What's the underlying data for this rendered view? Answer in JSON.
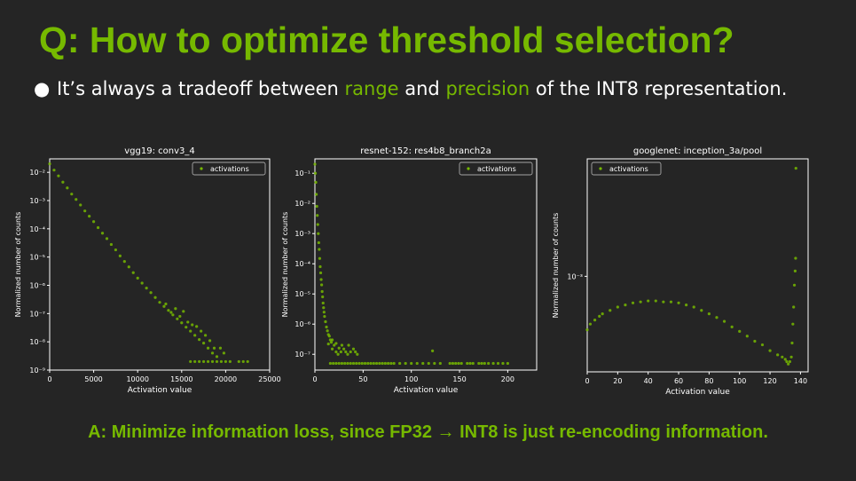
{
  "slide": {
    "title": "Q: How to optimize threshold selection?",
    "bullet": {
      "symbol": "●",
      "pre": "It’s always a tradeoff between ",
      "hl1": "range",
      "mid": " and ",
      "hl2": "precision",
      "post": " of the INT8 representation."
    },
    "answer": "A: Minimize information loss, since FP32 → INT8 is just re-encoding information.",
    "accent_color": "#76b900",
    "background_color": "#252525"
  },
  "chart_data": [
    {
      "type": "scatter",
      "title": "vgg19: conv3_4",
      "xlabel": "Activation value",
      "ylabel": "Normalized number of counts",
      "xlim": [
        0,
        25000
      ],
      "ylim": [
        1e-09,
        0.03
      ],
      "yscale": "log",
      "xticks": [
        0,
        5000,
        10000,
        15000,
        20000,
        25000
      ],
      "yticks": [
        1e-09,
        1e-08,
        1e-07,
        1e-06,
        1e-05,
        0.0001,
        0.001,
        0.01
      ],
      "ytick_labels": [
        "10⁻⁹",
        "10⁻⁸",
        "10⁻⁷",
        "10⁻⁶",
        "10⁻⁵",
        "10⁻⁴",
        "10⁻³",
        "10⁻²"
      ],
      "legend": "top-right",
      "grid": false,
      "series": [
        {
          "name": "activations",
          "color": "#76b900",
          "points": [
            [
              0,
              0.02
            ],
            [
              500,
              0.012
            ],
            [
              1000,
              0.0075
            ],
            [
              1500,
              0.0045
            ],
            [
              2000,
              0.0028
            ],
            [
              2500,
              0.0017
            ],
            [
              3000,
              0.0011
            ],
            [
              3500,
              0.0007
            ],
            [
              4000,
              0.00043
            ],
            [
              4500,
              0.00028
            ],
            [
              5000,
              0.00018
            ],
            [
              5500,
              0.00011
            ],
            [
              6000,
              7e-05
            ],
            [
              6500,
              4.5e-05
            ],
            [
              7000,
              2.8e-05
            ],
            [
              7500,
              1.8e-05
            ],
            [
              8000,
              1.1e-05
            ],
            [
              8500,
              7e-06
            ],
            [
              9000,
              4.5e-06
            ],
            [
              9500,
              2.8e-06
            ],
            [
              10000,
              1.8e-06
            ],
            [
              10500,
              1.2e-06
            ],
            [
              11000,
              8e-07
            ],
            [
              11500,
              5.5e-07
            ],
            [
              12000,
              3.7e-07
            ],
            [
              12500,
              2.5e-07
            ],
            [
              13000,
              1.8e-07
            ],
            [
              13500,
              1.3e-07
            ],
            [
              14000,
              9e-08
            ],
            [
              14500,
              6.5e-08
            ],
            [
              15000,
              4.7e-08
            ],
            [
              15500,
              3.3e-08
            ],
            [
              16000,
              2.4e-08
            ],
            [
              16500,
              1.7e-08
            ],
            [
              17000,
              1.2e-08
            ],
            [
              17500,
              9e-09
            ],
            [
              18000,
              6e-09
            ],
            [
              18500,
              4e-09
            ],
            [
              19000,
              3e-09
            ],
            [
              13200,
              2.2e-07
            ],
            [
              13800,
              1.1e-07
            ],
            [
              14300,
              1.5e-07
            ],
            [
              14800,
              8e-08
            ],
            [
              15200,
              1.2e-07
            ],
            [
              15700,
              5e-08
            ],
            [
              16200,
              4e-08
            ],
            [
              16700,
              3.5e-08
            ],
            [
              17200,
              2.4e-08
            ],
            [
              17700,
              1.7e-08
            ],
            [
              18200,
              1.1e-08
            ],
            [
              18700,
              6e-09
            ],
            [
              19400,
              6e-09
            ],
            [
              19800,
              4e-09
            ],
            [
              16000,
              2e-09
            ],
            [
              16500,
              2e-09
            ],
            [
              17000,
              2e-09
            ],
            [
              17500,
              2e-09
            ],
            [
              18000,
              2e-09
            ],
            [
              18500,
              2e-09
            ],
            [
              19000,
              2e-09
            ],
            [
              19500,
              2e-09
            ],
            [
              20000,
              2e-09
            ],
            [
              20500,
              2e-09
            ],
            [
              21500,
              2e-09
            ],
            [
              22000,
              2e-09
            ],
            [
              22500,
              2e-09
            ]
          ]
        }
      ]
    },
    {
      "type": "scatter",
      "title": "resnet-152: res4b8_branch2a",
      "xlabel": "Activation value",
      "ylabel": "Normalized number of counts",
      "xlim": [
        0,
        230
      ],
      "ylim": [
        3e-08,
        0.3
      ],
      "yscale": "log",
      "xticks": [
        0,
        50,
        100,
        150,
        200
      ],
      "yticks": [
        1e-07,
        1e-06,
        1e-05,
        0.0001,
        0.001,
        0.01,
        0.1
      ],
      "ytick_labels": [
        "10⁻⁷",
        "10⁻⁶",
        "10⁻⁵",
        "10⁻⁴",
        "10⁻³",
        "10⁻²",
        "10⁻¹"
      ],
      "legend": "top-right",
      "grid": false,
      "series": [
        {
          "name": "activations",
          "color": "#76b900",
          "points": [
            [
              0,
              0.2
            ],
            [
              0.5,
              0.1
            ],
            [
              1,
              0.05
            ],
            [
              1.5,
              0.02
            ],
            [
              2,
              0.008
            ],
            [
              2.5,
              0.004
            ],
            [
              3,
              0.002
            ],
            [
              3.5,
              0.001
            ],
            [
              4,
              0.0005
            ],
            [
              4.5,
              0.0003
            ],
            [
              5,
              0.00015
            ],
            [
              5.5,
              8e-05
            ],
            [
              6,
              5e-05
            ],
            [
              6.5,
              3e-05
            ],
            [
              7,
              2e-05
            ],
            [
              7.5,
              1.2e-05
            ],
            [
              8,
              8e-06
            ],
            [
              8.5,
              5e-06
            ],
            [
              9,
              3.5e-06
            ],
            [
              9.5,
              2.5e-06
            ],
            [
              10,
              1.8e-06
            ],
            [
              11,
              1.2e-06
            ],
            [
              12,
              8e-07
            ],
            [
              13,
              6e-07
            ],
            [
              14,
              4.5e-07
            ],
            [
              15,
              4e-07
            ],
            [
              16,
              3e-07
            ],
            [
              17,
              2.5e-07
            ],
            [
              18,
              3e-07
            ],
            [
              20,
              2e-07
            ],
            [
              22,
              2.3e-07
            ],
            [
              25,
              1.6e-07
            ],
            [
              28,
              2e-07
            ],
            [
              30,
              1.5e-07
            ],
            [
              35,
              2e-07
            ],
            [
              40,
              1.5e-07
            ],
            [
              14,
              2.2e-07
            ],
            [
              18,
              1.5e-07
            ],
            [
              22,
              1.2e-07
            ],
            [
              27,
              1.2e-07
            ],
            [
              32,
              1.2e-07
            ],
            [
              37,
              1.2e-07
            ],
            [
              42,
              1.2e-07
            ],
            [
              24,
              1e-07
            ],
            [
              34,
              1e-07
            ],
            [
              44,
              1e-07
            ],
            [
              122,
              1.3e-07
            ],
            [
              16,
              5e-08
            ],
            [
              19,
              5e-08
            ],
            [
              22,
              5e-08
            ],
            [
              25,
              5e-08
            ],
            [
              28,
              5e-08
            ],
            [
              31,
              5e-08
            ],
            [
              34,
              5e-08
            ],
            [
              37,
              5e-08
            ],
            [
              40,
              5e-08
            ],
            [
              43,
              5e-08
            ],
            [
              46,
              5e-08
            ],
            [
              49,
              5e-08
            ],
            [
              52,
              5e-08
            ],
            [
              55,
              5e-08
            ],
            [
              58,
              5e-08
            ],
            [
              61,
              5e-08
            ],
            [
              64,
              5e-08
            ],
            [
              67,
              5e-08
            ],
            [
              70,
              5e-08
            ],
            [
              73,
              5e-08
            ],
            [
              76,
              5e-08
            ],
            [
              79,
              5e-08
            ],
            [
              82,
              5e-08
            ],
            [
              88,
              5e-08
            ],
            [
              94,
              5e-08
            ],
            [
              100,
              5e-08
            ],
            [
              106,
              5e-08
            ],
            [
              112,
              5e-08
            ],
            [
              118,
              5e-08
            ],
            [
              124,
              5e-08
            ],
            [
              130,
              5e-08
            ],
            [
              140,
              5e-08
            ],
            [
              143,
              5e-08
            ],
            [
              146,
              5e-08
            ],
            [
              149,
              5e-08
            ],
            [
              152,
              5e-08
            ],
            [
              158,
              5e-08
            ],
            [
              161,
              5e-08
            ],
            [
              164,
              5e-08
            ],
            [
              170,
              5e-08
            ],
            [
              173,
              5e-08
            ],
            [
              176,
              5e-08
            ],
            [
              180,
              5e-08
            ],
            [
              185,
              5e-08
            ],
            [
              190,
              5e-08
            ],
            [
              195,
              5e-08
            ],
            [
              200,
              5e-08
            ]
          ]
        }
      ]
    },
    {
      "type": "scatter",
      "title": "googlenet: inception_3a/pool",
      "xlabel": "Activation value",
      "ylabel": "Normalized number of counts",
      "xlim": [
        0,
        145
      ],
      "ylim": [
        0.00025,
        0.0055
      ],
      "yscale": "log",
      "xticks": [
        0,
        20,
        40,
        60,
        80,
        100,
        120,
        140
      ],
      "yticks": [
        0.001
      ],
      "ytick_labels": [
        "10⁻³"
      ],
      "legend": "top-left",
      "grid": false,
      "series": [
        {
          "name": "activations",
          "color": "#76b900",
          "points": [
            [
              0,
              0.00046
            ],
            [
              2,
              0.0005
            ],
            [
              5,
              0.00053
            ],
            [
              8,
              0.00056
            ],
            [
              10,
              0.00058
            ],
            [
              15,
              0.00061
            ],
            [
              20,
              0.00064
            ],
            [
              25,
              0.00066
            ],
            [
              30,
              0.00068
            ],
            [
              35,
              0.00069
            ],
            [
              40,
              0.0007
            ],
            [
              45,
              0.0007
            ],
            [
              50,
              0.00069
            ],
            [
              55,
              0.00069
            ],
            [
              60,
              0.00068
            ],
            [
              65,
              0.00066
            ],
            [
              70,
              0.00064
            ],
            [
              75,
              0.00061
            ],
            [
              80,
              0.00058
            ],
            [
              85,
              0.00055
            ],
            [
              90,
              0.00052
            ],
            [
              95,
              0.00048
            ],
            [
              100,
              0.00045
            ],
            [
              105,
              0.00042
            ],
            [
              110,
              0.00039
            ],
            [
              115,
              0.00037
            ],
            [
              120,
              0.00034
            ],
            [
              125,
              0.00032
            ],
            [
              128,
              0.00031
            ],
            [
              130,
              0.0003
            ],
            [
              131,
              0.00029
            ],
            [
              132,
              0.00028
            ],
            [
              133,
              0.00029
            ],
            [
              134,
              0.00031
            ],
            [
              134.5,
              0.00038
            ],
            [
              135,
              0.0005
            ],
            [
              135.5,
              0.00064
            ],
            [
              136,
              0.00088
            ],
            [
              136.5,
              0.00108
            ],
            [
              136.8,
              0.0013
            ],
            [
              137,
              0.0048
            ]
          ]
        }
      ]
    }
  ]
}
